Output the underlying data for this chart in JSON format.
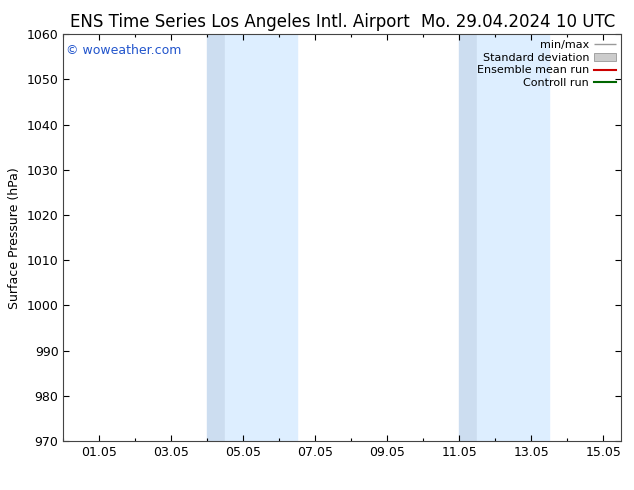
{
  "title_left": "ENS Time Series Los Angeles Intl. Airport",
  "title_right": "Mo. 29.04.2024 10 UTC",
  "ylabel": "Surface Pressure (hPa)",
  "ylim": [
    970,
    1060
  ],
  "yticks": [
    970,
    980,
    990,
    1000,
    1010,
    1020,
    1030,
    1040,
    1050,
    1060
  ],
  "xtick_labels": [
    "01.05",
    "03.05",
    "05.05",
    "07.05",
    "09.05",
    "11.05",
    "13.05",
    "15.05"
  ],
  "xtick_positions": [
    1,
    3,
    5,
    7,
    9,
    11,
    13,
    15
  ],
  "xlim": [
    0.0,
    15.5
  ],
  "shaded_bands": [
    {
      "xmin": 4.0,
      "xmax": 4.5
    },
    {
      "xmin": 4.5,
      "xmax": 6.5
    },
    {
      "xmin": 11.0,
      "xmax": 11.5
    },
    {
      "xmin": 11.5,
      "xmax": 13.5
    }
  ],
  "shade_color_dark": "#ccddf0",
  "shade_color_light": "#ddeeff",
  "watermark_text": "© woweather.com",
  "watermark_color": "#2255cc",
  "legend_items": [
    {
      "label": "min/max",
      "color": "#999999",
      "lw": 1.0,
      "style": "minmax"
    },
    {
      "label": "Standard deviation",
      "color": "#cccccc",
      "lw": 8,
      "style": "fill"
    },
    {
      "label": "Ensemble mean run",
      "color": "#cc0000",
      "lw": 1.5,
      "style": "line"
    },
    {
      "label": "Controll run",
      "color": "#006600",
      "lw": 1.5,
      "style": "line"
    }
  ],
  "bg_color": "#ffffff",
  "plot_bg_color": "#ffffff",
  "title_fontsize": 12,
  "tick_fontsize": 9,
  "ylabel_fontsize": 9,
  "legend_fontsize": 8,
  "watermark_fontsize": 9
}
